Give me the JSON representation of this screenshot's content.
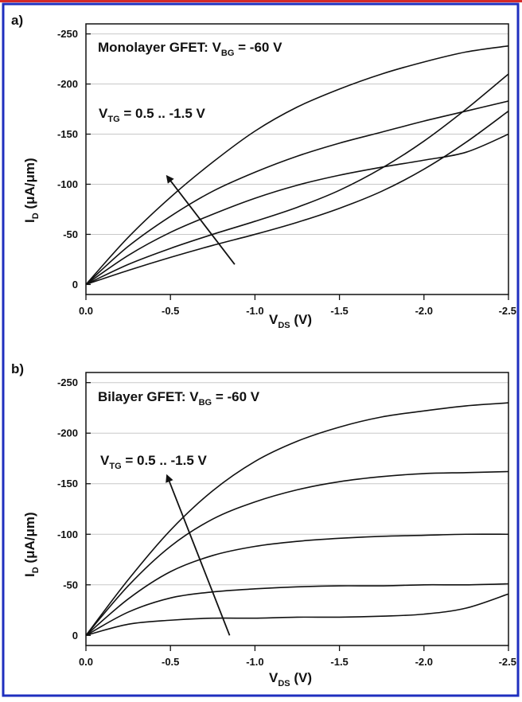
{
  "figure": {
    "top_rule_color": "#d42a2a",
    "border_color": "#1f2fbf",
    "curve_color": "#111111",
    "grid_color": "#c8c8c8"
  },
  "chart_data": [
    {
      "panel_label": "a)",
      "type": "line",
      "title": "Monolayer GFET: V",
      "title_sub": "BG",
      "title_tail": " = -60 V",
      "annotation": "V",
      "annotation_sub": "TG",
      "annotation_tail": " = 0.5 .. -1.5 V",
      "xlabel": "V",
      "xlabel_sub": "DS",
      "xlabel_tail": " (V)",
      "ylabel": "I",
      "ylabel_sub": "D",
      "ylabel_tail": " (μA/μm)",
      "xlim": [
        0,
        -2.5
      ],
      "ylim": [
        10,
        -260
      ],
      "x_ticks": [
        0.0,
        -0.5,
        -1.0,
        -1.5,
        -2.0,
        -2.5
      ],
      "x_tick_labels": [
        "0.0",
        "-0.5",
        "-1.0",
        "-1.5",
        "-2.0",
        "-2.5"
      ],
      "y_ticks": [
        0,
        -50,
        -100,
        -150,
        -200,
        -250
      ],
      "y_tick_labels": [
        "0",
        "-50",
        "-100",
        "-150",
        "-200",
        "-250"
      ],
      "grid": true,
      "arrow": {
        "from": [
          -0.88,
          -20
        ],
        "to": [
          -0.48,
          -108
        ]
      },
      "x": [
        0,
        -0.25,
        -0.5,
        -0.75,
        -1.0,
        -1.25,
        -1.5,
        -1.75,
        -2.0,
        -2.25,
        -2.5
      ],
      "series": [
        {
          "values": [
            0,
            -20,
            -36,
            -50,
            -63,
            -77,
            -94,
            -116,
            -143,
            -175,
            -210
          ]
        },
        {
          "values": [
            0,
            -14,
            -27,
            -39,
            -50,
            -62,
            -76,
            -93,
            -115,
            -142,
            -173
          ]
        },
        {
          "values": [
            0,
            -29,
            -52,
            -70,
            -86,
            -99,
            -109,
            -117,
            -124,
            -132,
            -150
          ]
        },
        {
          "values": [
            0,
            -38,
            -68,
            -93,
            -112,
            -128,
            -141,
            -152,
            -163,
            -173,
            -183
          ]
        },
        {
          "values": [
            0,
            -47,
            -87,
            -122,
            -153,
            -177,
            -195,
            -210,
            -222,
            -232,
            -238
          ]
        }
      ]
    },
    {
      "panel_label": "b)",
      "type": "line",
      "title": "Bilayer GFET: V",
      "title_sub": "BG",
      "title_tail": " = -60 V",
      "annotation": "V",
      "annotation_sub": "TG",
      "annotation_tail": " = 0.5 .. -1.5 V",
      "xlabel": "V",
      "xlabel_sub": "DS",
      "xlabel_tail": " (V)",
      "ylabel": "I",
      "ylabel_sub": "D",
      "ylabel_tail": " (μA/μm)",
      "xlim": [
        0,
        -2.5
      ],
      "ylim": [
        10,
        -260
      ],
      "x_ticks": [
        0.0,
        -0.5,
        -1.0,
        -1.5,
        -2.0,
        -2.5
      ],
      "x_tick_labels": [
        "0.0",
        "-0.5",
        "-1.0",
        "-1.5",
        "-2.0",
        "-2.5"
      ],
      "y_ticks": [
        0,
        -50,
        -100,
        -150,
        -200,
        -250
      ],
      "y_tick_labels": [
        "0",
        "-50",
        "-100",
        "-150",
        "-200",
        "-250"
      ],
      "grid": true,
      "arrow": {
        "from": [
          -0.85,
          0
        ],
        "to": [
          -0.48,
          -158
        ]
      },
      "x": [
        0,
        -0.25,
        -0.5,
        -0.75,
        -1.0,
        -1.25,
        -1.5,
        -1.75,
        -2.0,
        -2.25,
        -2.5
      ],
      "series": [
        {
          "values": [
            0,
            -11,
            -15,
            -17,
            -17,
            -18,
            -18,
            -19,
            -21,
            -27,
            -41
          ]
        },
        {
          "values": [
            0,
            -23,
            -37,
            -43,
            -46,
            -48,
            -49,
            -49,
            -50,
            -50,
            -51
          ]
        },
        {
          "values": [
            0,
            -36,
            -63,
            -79,
            -88,
            -93,
            -96,
            -98,
            -99,
            -100,
            -100
          ]
        },
        {
          "values": [
            0,
            -49,
            -88,
            -115,
            -132,
            -144,
            -152,
            -157,
            -160,
            -161,
            -162
          ]
        },
        {
          "values": [
            0,
            -55,
            -104,
            -143,
            -172,
            -192,
            -206,
            -216,
            -222,
            -227,
            -230
          ]
        }
      ]
    }
  ]
}
